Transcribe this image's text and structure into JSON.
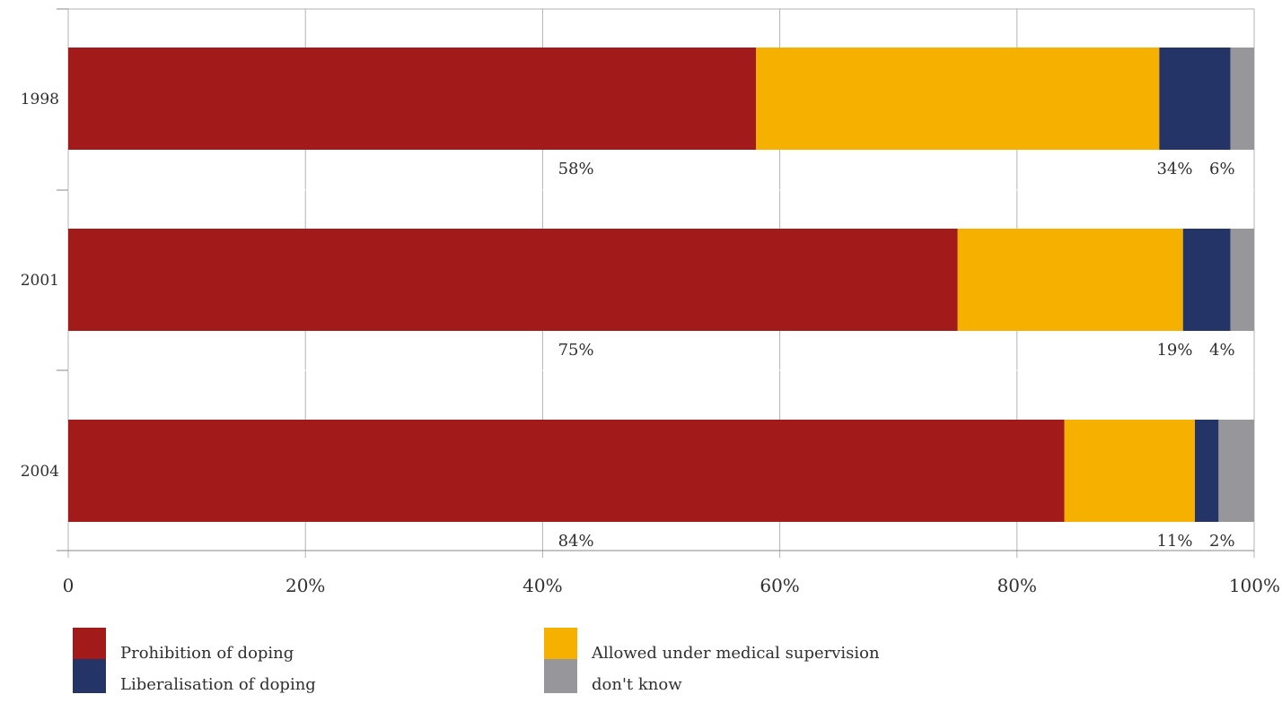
{
  "chart_data": {
    "type": "bar",
    "orientation": "horizontal",
    "stacked": true,
    "categories": [
      "1998",
      "2001",
      "2004"
    ],
    "series": [
      {
        "name": "Prohibition of doping",
        "values": [
          58,
          75,
          84
        ],
        "color": "#a31a1a"
      },
      {
        "name": "Allowed under medical supervision",
        "values": [
          34,
          19,
          11
        ],
        "color": "#f5b000"
      },
      {
        "name": "Liberalisation of doping",
        "values": [
          6,
          4,
          2
        ],
        "color": "#253467"
      },
      {
        "name": "don't know",
        "values": [
          2,
          2,
          3
        ],
        "color": "#97979b"
      }
    ],
    "data_labels": [
      [
        "58%",
        "34%",
        "6%"
      ],
      [
        "75%",
        "19%",
        "4%"
      ],
      [
        "84%",
        "11%",
        "2%"
      ]
    ],
    "x_ticks": [
      "0",
      "20%",
      "40%",
      "60%",
      "80%",
      "100%"
    ],
    "xlim": [
      0,
      100
    ],
    "grid": true,
    "legend_position": "bottom"
  }
}
